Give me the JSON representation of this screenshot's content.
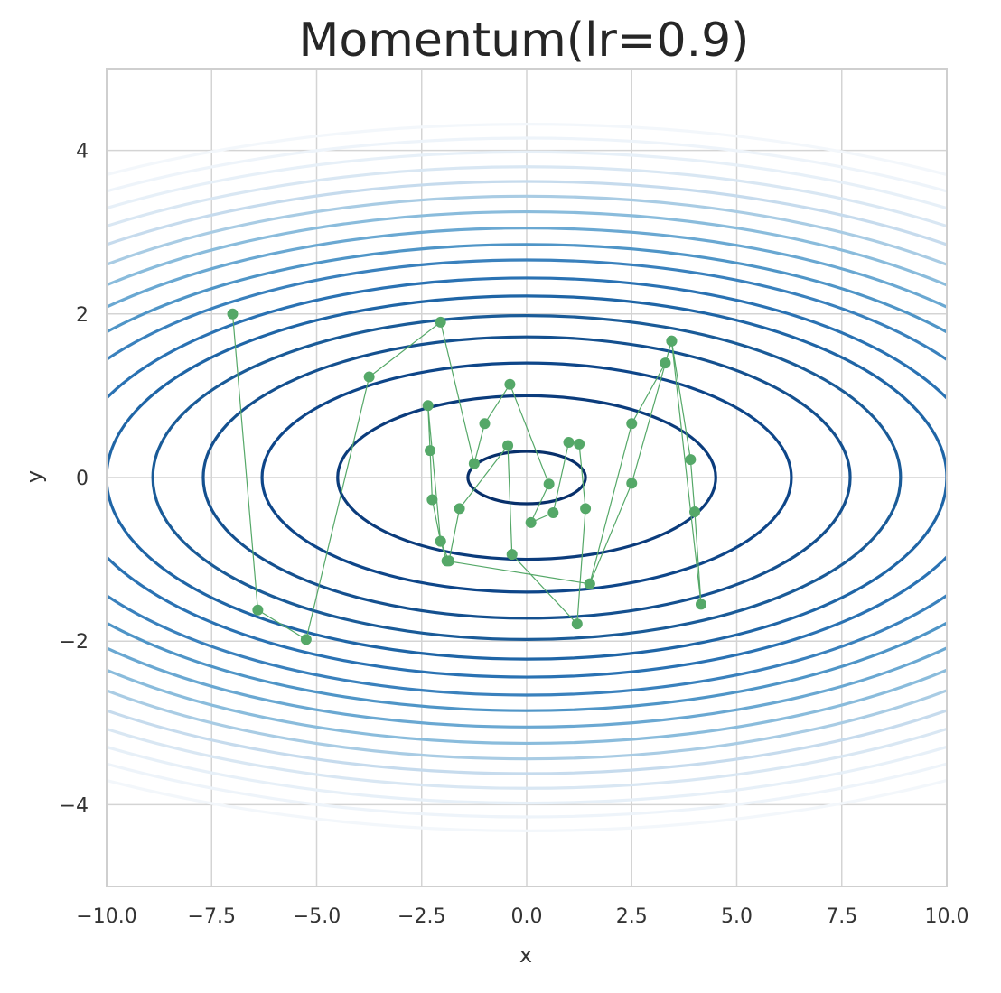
{
  "chart_data": {
    "type": "line",
    "title": "Momentum(lr=0.9)",
    "xlabel": "x",
    "ylabel": "y",
    "xlim": [
      -10,
      10
    ],
    "ylim": [
      -5,
      5
    ],
    "grid": true,
    "background": "white",
    "x_ticks": [
      -10.0,
      -7.5,
      -5.0,
      -2.5,
      0.0,
      2.5,
      5.0,
      7.5,
      10.0
    ],
    "x_tick_labels": [
      "−10.0",
      "−7.5",
      "−5.0",
      "−2.5",
      "0.0",
      "2.5",
      "5.0",
      "7.5",
      "10.0"
    ],
    "y_ticks": [
      -4,
      -2,
      0,
      2,
      4
    ],
    "y_tick_labels": [
      "−4",
      "−2",
      "0",
      "2",
      "4"
    ],
    "contours": {
      "function": "x^2/20 + y^2",
      "colormap": "Blues_r",
      "levels": [
        {
          "a": 1.4,
          "b": 0.32,
          "color": "#08306b"
        },
        {
          "a": 4.5,
          "b": 1.0,
          "color": "#0b3c7c"
        },
        {
          "a": 6.3,
          "b": 1.4,
          "color": "#0e4689"
        },
        {
          "a": 7.7,
          "b": 1.72,
          "color": "#14508f"
        },
        {
          "a": 8.9,
          "b": 1.98,
          "color": "#1a5b98"
        },
        {
          "a": 10.0,
          "b": 2.22,
          "color": "#1f65a6"
        },
        {
          "a": 10.9,
          "b": 2.44,
          "color": "#2a72b3"
        },
        {
          "a": 11.9,
          "b": 2.66,
          "color": "#3a81bd"
        },
        {
          "a": 12.8,
          "b": 2.85,
          "color": "#4f95c7"
        },
        {
          "a": 13.7,
          "b": 3.05,
          "color": "#6aa8d2"
        },
        {
          "a": 14.5,
          "b": 3.25,
          "color": "#8abcdc"
        },
        {
          "a": 15.3,
          "b": 3.44,
          "color": "#a9cce4"
        },
        {
          "a": 16.2,
          "b": 3.62,
          "color": "#c6dbed"
        },
        {
          "a": 17.0,
          "b": 3.8,
          "color": "#d9e7f3"
        },
        {
          "a": 17.8,
          "b": 3.98,
          "color": "#e7f0f8"
        },
        {
          "a": 18.6,
          "b": 4.15,
          "color": "#eef4fa"
        },
        {
          "a": 19.4,
          "b": 4.32,
          "color": "#f3f7fb"
        }
      ]
    },
    "series": [
      {
        "color": "#55a868",
        "points": [
          [
            -7.0,
            2.0
          ],
          [
            -6.4,
            -1.62
          ],
          [
            -5.25,
            -1.98
          ],
          [
            -3.75,
            1.23
          ],
          [
            -2.05,
            1.9
          ],
          [
            -1.25,
            0.17
          ],
          [
            -1.0,
            0.66
          ],
          [
            -0.4,
            1.14
          ],
          [
            0.53,
            -0.08
          ],
          [
            0.1,
            -0.55
          ],
          [
            0.63,
            -0.43
          ],
          [
            1.0,
            0.43
          ],
          [
            1.25,
            0.41
          ],
          [
            1.4,
            -0.38
          ],
          [
            1.2,
            -1.79
          ],
          [
            -0.35,
            -0.94
          ],
          [
            -0.45,
            0.39
          ],
          [
            -1.6,
            -0.38
          ],
          [
            -1.85,
            -1.02
          ],
          [
            -2.05,
            -0.78
          ],
          [
            -2.25,
            -0.27
          ],
          [
            -2.3,
            0.33
          ],
          [
            -2.35,
            0.88
          ],
          [
            -2.05,
            -0.78
          ],
          [
            -1.9,
            -1.02
          ],
          [
            1.5,
            -1.3
          ],
          [
            2.5,
            0.66
          ],
          [
            3.3,
            1.4
          ],
          [
            3.45,
            1.67
          ],
          [
            3.9,
            0.22
          ],
          [
            4.0,
            -0.42
          ],
          [
            4.15,
            -1.55
          ],
          [
            3.45,
            1.67
          ],
          [
            2.5,
            -0.07
          ],
          [
            1.5,
            -1.3
          ]
        ]
      }
    ]
  }
}
